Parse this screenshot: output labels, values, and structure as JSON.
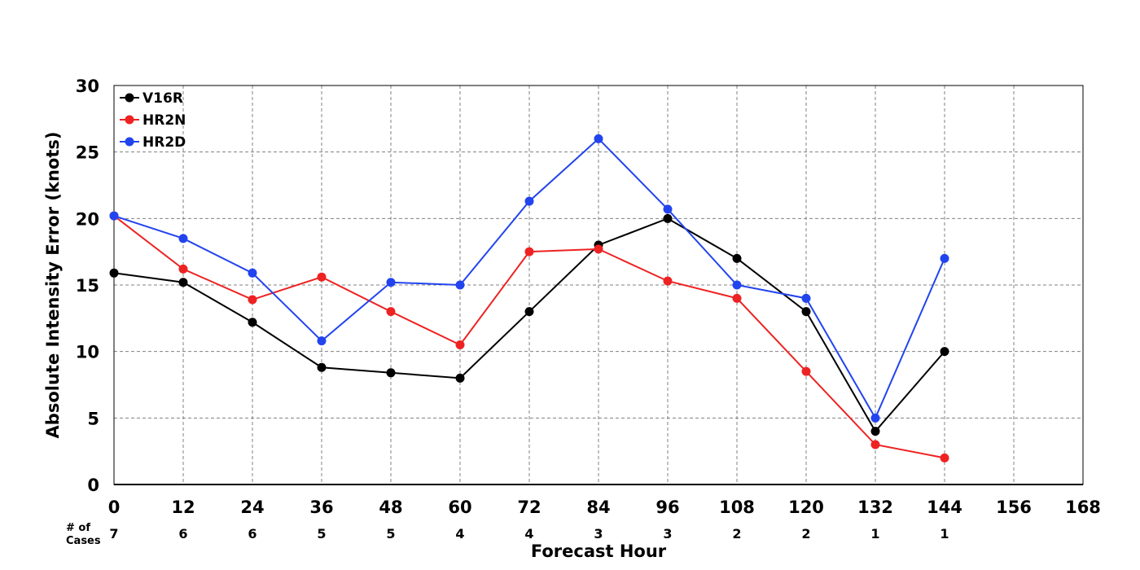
{
  "chart_data": {
    "type": "line",
    "xlabel": "Forecast Hour",
    "ylabel": "Absolute Intensity Error (knots)",
    "xlim": [
      0,
      168
    ],
    "ylim": [
      0,
      30
    ],
    "xticks": [
      0,
      12,
      24,
      36,
      48,
      60,
      72,
      84,
      96,
      108,
      120,
      132,
      144,
      156,
      168
    ],
    "yticks": [
      0,
      5,
      10,
      15,
      20,
      25,
      30
    ],
    "grid": true,
    "legend_position": "top-left",
    "cases_label": "# of\nCases",
    "cases": [
      {
        "x": 0,
        "n": "7"
      },
      {
        "x": 12,
        "n": "6"
      },
      {
        "x": 24,
        "n": "6"
      },
      {
        "x": 36,
        "n": "5"
      },
      {
        "x": 48,
        "n": "5"
      },
      {
        "x": 60,
        "n": "4"
      },
      {
        "x": 72,
        "n": "4"
      },
      {
        "x": 84,
        "n": "3"
      },
      {
        "x": 96,
        "n": "3"
      },
      {
        "x": 108,
        "n": "2"
      },
      {
        "x": 120,
        "n": "2"
      },
      {
        "x": 132,
        "n": "1"
      },
      {
        "x": 144,
        "n": "1"
      }
    ],
    "series": [
      {
        "name": "V16R",
        "color": "#000000",
        "x": [
          0,
          12,
          24,
          36,
          48,
          60,
          72,
          84,
          96,
          108,
          120,
          132,
          144
        ],
        "values": [
          15.9,
          15.2,
          12.2,
          8.8,
          8.4,
          8.0,
          13.0,
          18.0,
          20.0,
          17.0,
          13.0,
          4.0,
          10.0
        ]
      },
      {
        "name": "HR2N",
        "color": "#ee2222",
        "x": [
          0,
          12,
          24,
          36,
          48,
          60,
          72,
          84,
          96,
          108,
          120,
          132,
          144
        ],
        "values": [
          20.2,
          16.2,
          13.9,
          15.6,
          13.0,
          10.5,
          17.5,
          17.7,
          15.3,
          14.0,
          8.5,
          3.0,
          2.0
        ]
      },
      {
        "name": "HR2D",
        "color": "#2244ee",
        "x": [
          0,
          12,
          24,
          36,
          48,
          60,
          72,
          84,
          96,
          108,
          120,
          132,
          144
        ],
        "values": [
          20.2,
          18.5,
          15.9,
          10.8,
          15.2,
          15.0,
          21.3,
          26.0,
          20.7,
          15.0,
          14.0,
          5.0,
          17.0
        ]
      }
    ]
  }
}
